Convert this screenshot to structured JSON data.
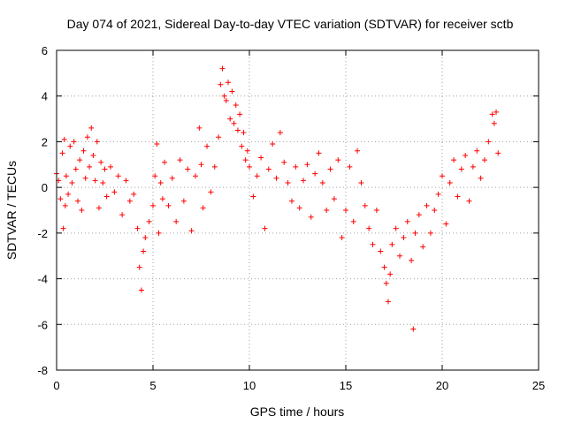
{
  "chart_data": {
    "type": "scatter",
    "title": "Day 074 of 2021, Sidereal Day-to-day VTEC variation (SDTVAR) for receiver sctb",
    "xlabel": "GPS time / hours",
    "ylabel": "SDTVAR / TECUs",
    "xlim": [
      0,
      25
    ],
    "ylim": [
      -8,
      6
    ],
    "xticks": [
      "0",
      "5",
      "10",
      "15",
      "20",
      "25"
    ],
    "yticks": [
      "6",
      "4",
      "2",
      "0",
      "-2",
      "-4",
      "-6",
      "-8"
    ],
    "grid": true,
    "marker": "+",
    "color": "#ff0000",
    "series": [
      {
        "name": "SDTVAR",
        "x": [
          0.0,
          0.1,
          0.2,
          0.3,
          0.35,
          0.4,
          0.45,
          0.5,
          0.6,
          0.7,
          0.8,
          0.9,
          1.0,
          1.1,
          1.2,
          1.3,
          1.4,
          1.5,
          1.6,
          1.7,
          1.8,
          1.9,
          2.0,
          2.1,
          2.2,
          2.3,
          2.4,
          2.5,
          2.6,
          2.8,
          3.0,
          3.2,
          3.4,
          3.6,
          3.8,
          4.0,
          4.2,
          4.3,
          4.4,
          4.5,
          4.6,
          4.8,
          5.0,
          5.1,
          5.2,
          5.3,
          5.4,
          5.5,
          5.6,
          5.8,
          6.0,
          6.2,
          6.4,
          6.6,
          6.8,
          7.0,
          7.2,
          7.4,
          7.5,
          7.6,
          7.8,
          8.0,
          8.2,
          8.4,
          8.5,
          8.6,
          8.7,
          8.8,
          8.9,
          9.0,
          9.1,
          9.2,
          9.3,
          9.4,
          9.5,
          9.6,
          9.7,
          9.8,
          9.9,
          10.0,
          10.2,
          10.4,
          10.6,
          10.8,
          11.0,
          11.2,
          11.4,
          11.6,
          11.8,
          12.0,
          12.2,
          12.4,
          12.6,
          12.8,
          13.0,
          13.2,
          13.4,
          13.6,
          13.8,
          14.0,
          14.2,
          14.4,
          14.6,
          14.8,
          15.0,
          15.2,
          15.4,
          15.6,
          15.8,
          16.0,
          16.2,
          16.4,
          16.6,
          16.8,
          17.0,
          17.1,
          17.2,
          17.3,
          17.4,
          17.6,
          17.8,
          18.0,
          18.2,
          18.4,
          18.5,
          18.6,
          18.8,
          19.0,
          19.2,
          19.4,
          19.6,
          19.8,
          20.0,
          20.2,
          20.4,
          20.6,
          20.8,
          21.0,
          21.2,
          21.4,
          21.6,
          21.8,
          22.0,
          22.2,
          22.4,
          22.6,
          22.7,
          22.8,
          22.9
        ],
        "y": [
          0.6,
          0.3,
          -0.5,
          1.5,
          -1.8,
          2.1,
          -0.8,
          0.5,
          -0.3,
          1.8,
          0.2,
          2.0,
          0.8,
          -0.6,
          1.2,
          -1.0,
          1.6,
          0.4,
          2.2,
          0.9,
          2.6,
          1.4,
          0.3,
          2.0,
          -0.9,
          1.1,
          0.2,
          0.8,
          -0.4,
          0.9,
          -0.2,
          0.5,
          -1.2,
          0.3,
          -0.6,
          -0.3,
          -1.8,
          -3.5,
          -4.5,
          -2.8,
          -2.2,
          -1.5,
          -0.8,
          0.5,
          1.9,
          -2.0,
          0.2,
          -0.5,
          1.1,
          -0.8,
          0.4,
          -1.5,
          1.2,
          -0.6,
          0.8,
          -1.9,
          0.5,
          2.6,
          1.0,
          -0.9,
          1.8,
          -0.2,
          0.9,
          2.2,
          4.5,
          5.2,
          4.0,
          3.8,
          4.6,
          3.0,
          4.2,
          2.8,
          3.6,
          2.5,
          3.2,
          1.8,
          2.4,
          1.2,
          1.6,
          0.9,
          -0.4,
          0.5,
          1.3,
          -1.8,
          0.8,
          1.9,
          0.4,
          2.4,
          1.1,
          0.2,
          -0.6,
          0.9,
          -0.9,
          0.3,
          1.0,
          -1.3,
          0.6,
          1.5,
          0.2,
          -1.0,
          0.8,
          -0.5,
          1.2,
          -2.2,
          -1.0,
          0.9,
          -1.5,
          1.6,
          0.2,
          -0.8,
          -1.8,
          -2.5,
          -1.0,
          -2.8,
          -3.5,
          -4.2,
          -5.0,
          -3.8,
          -2.5,
          -1.8,
          -3.0,
          -2.2,
          -1.5,
          -3.2,
          -6.2,
          -2.0,
          -1.2,
          -2.6,
          -0.8,
          -2.0,
          -1.0,
          -0.3,
          0.5,
          -1.6,
          0.2,
          1.2,
          -0.4,
          0.8,
          1.4,
          -0.6,
          0.9,
          1.6,
          0.4,
          1.2,
          2.0,
          3.2,
          2.8,
          3.3,
          1.5
        ]
      }
    ]
  }
}
